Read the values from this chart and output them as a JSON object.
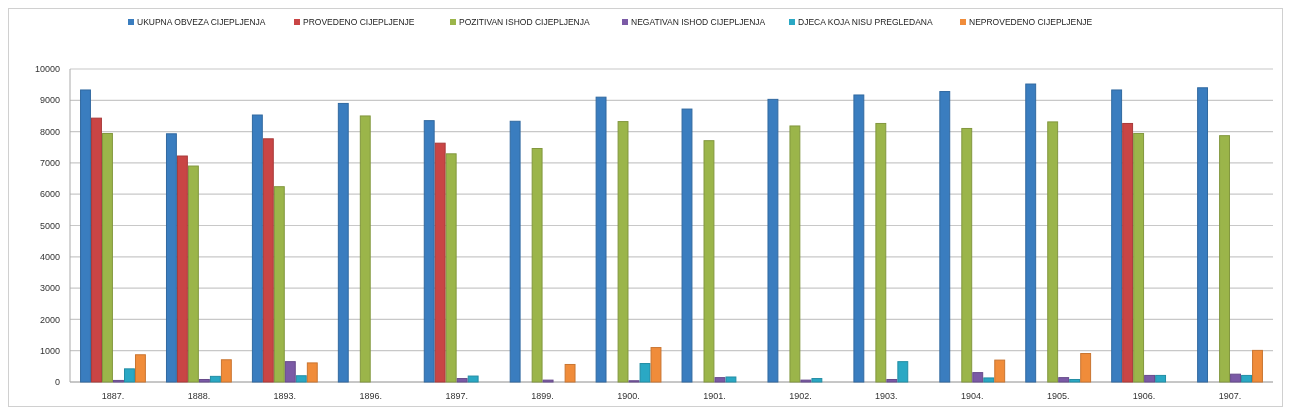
{
  "chart_data": {
    "type": "bar",
    "categories": [
      "1887.",
      "1888.",
      "1893.",
      "1896.",
      "1897.",
      "1899.",
      "1900.",
      "1901.",
      "1902.",
      "1903.",
      "1904.",
      "1905.",
      "1906.",
      "1907."
    ],
    "series": [
      {
        "name": "UKUPNA OBVEZA CIJEPLJENJA",
        "color": "#3a7dbf",
        "values": [
          9330,
          7930,
          8530,
          8900,
          8350,
          8330,
          9100,
          8720,
          9030,
          9170,
          9280,
          9520,
          9330,
          9400
        ]
      },
      {
        "name": "PROVEDENO CIJEPLJENJE",
        "color": "#c94545",
        "values": [
          8430,
          7220,
          7770,
          null,
          7630,
          null,
          null,
          null,
          null,
          null,
          null,
          null,
          8260,
          null
        ]
      },
      {
        "name": "POZITIVAN ISHOD CIJEPLJENJA",
        "color": "#9bb54a",
        "values": [
          7940,
          6900,
          6240,
          8500,
          7290,
          7460,
          8320,
          7710,
          8180,
          8260,
          8100,
          8310,
          7940,
          7870
        ]
      },
      {
        "name": "NEGATIVAN ISHOD CIJEPLJENJA",
        "color": "#7b5aa6",
        "values": [
          50,
          80,
          650,
          null,
          110,
          60,
          40,
          140,
          60,
          80,
          300,
          140,
          210,
          250
        ]
      },
      {
        "name": "DJECA KOJA NISU PREGLEDANA",
        "color": "#2aa8c4",
        "values": [
          420,
          180,
          200,
          null,
          190,
          null,
          590,
          160,
          110,
          650,
          130,
          80,
          210,
          210
        ]
      },
      {
        "name": "NEPROVEDENO CIJEPLJENJE",
        "color": "#f08c3a",
        "values": [
          870,
          710,
          610,
          null,
          null,
          560,
          1100,
          null,
          null,
          null,
          700,
          910,
          null,
          1010
        ]
      }
    ],
    "ylim": [
      0,
      10000
    ],
    "yticks": [
      0,
      1000,
      2000,
      3000,
      4000,
      5000,
      6000,
      7000,
      8000,
      9000,
      10000
    ],
    "grid": "y",
    "legend": "top"
  }
}
